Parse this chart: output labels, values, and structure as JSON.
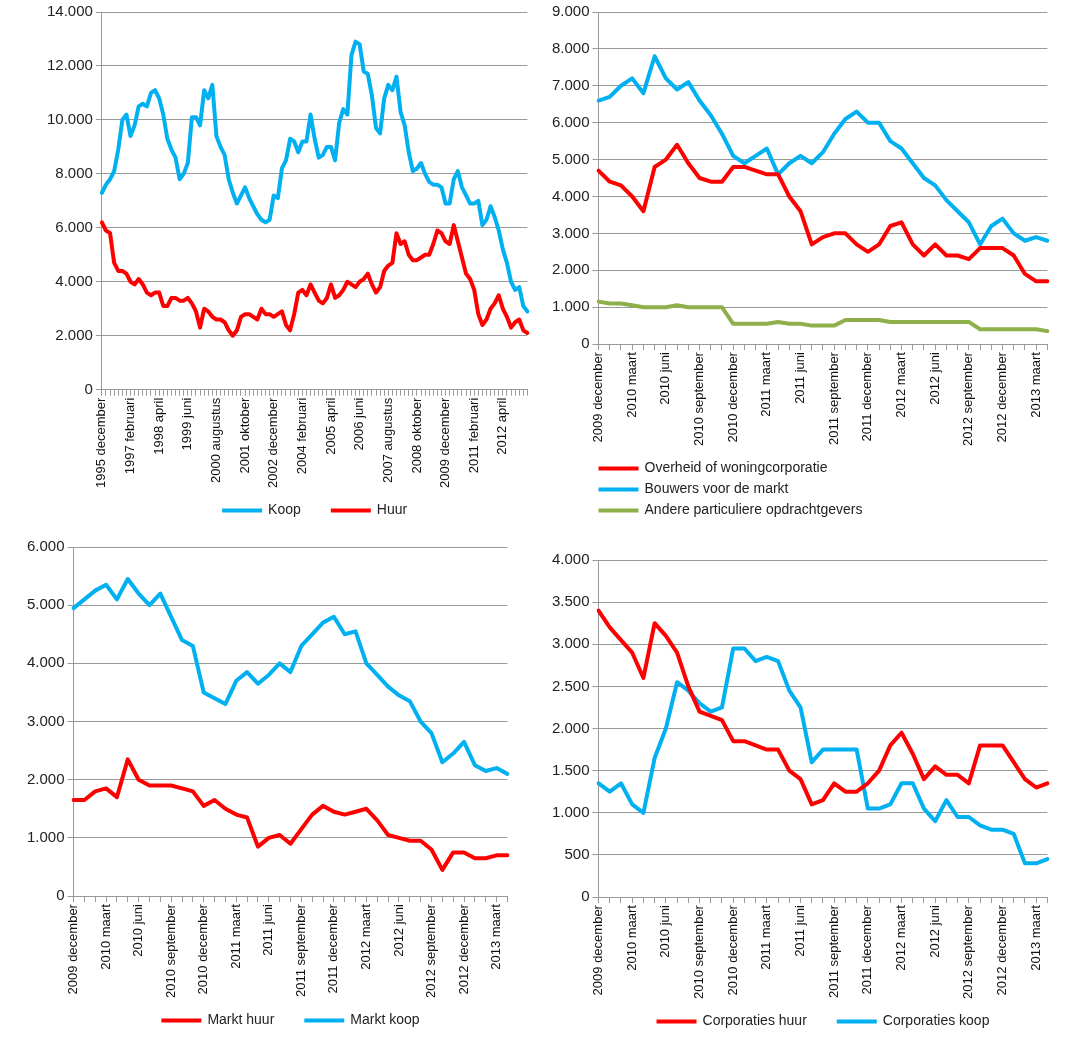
{
  "chart_data": [
    {
      "type": "line",
      "categories": [
        "1995 december",
        null,
        null,
        null,
        null,
        null,
        null,
        "1997 februari",
        null,
        null,
        null,
        null,
        null,
        null,
        "1998 april",
        null,
        null,
        null,
        null,
        null,
        null,
        "1999 juni",
        null,
        null,
        null,
        null,
        null,
        null,
        "2000 augustus",
        null,
        null,
        null,
        null,
        null,
        null,
        "2001 oktober",
        null,
        null,
        null,
        null,
        null,
        null,
        "2002 december",
        null,
        null,
        null,
        null,
        null,
        null,
        "2004 februari",
        null,
        null,
        null,
        null,
        null,
        null,
        "2005 april",
        null,
        null,
        null,
        null,
        null,
        null,
        "2006 juni",
        null,
        null,
        null,
        null,
        null,
        null,
        "2007 augustus",
        null,
        null,
        null,
        null,
        null,
        null,
        "2008 oktober",
        null,
        null,
        null,
        null,
        null,
        null,
        "2009 december",
        null,
        null,
        null,
        null,
        null,
        null,
        "2011 februari",
        null,
        null,
        null,
        null,
        null,
        null,
        "2012 april",
        null,
        null,
        null,
        null,
        null,
        null
      ],
      "series": [
        {
          "name": "Koop",
          "color": "#00b0f0",
          "values": [
            7300,
            7600,
            7800,
            8100,
            8900,
            10000,
            10200,
            9400,
            9800,
            10500,
            10600,
            10500,
            11000,
            11100,
            10800,
            10200,
            9300,
            8900,
            8600,
            7800,
            8000,
            8400,
            10100,
            10100,
            9800,
            11100,
            10800,
            11300,
            9400,
            9000,
            8700,
            7800,
            7300,
            6900,
            7200,
            7500,
            7100,
            6800,
            6500,
            6300,
            6200,
            6300,
            7200,
            7100,
            8200,
            8500,
            9300,
            9200,
            8800,
            9200,
            9200,
            10200,
            9300,
            8600,
            8700,
            9000,
            9000,
            8500,
            9900,
            10400,
            10200,
            12400,
            12900,
            12800,
            11800,
            11700,
            10900,
            9700,
            9500,
            10800,
            11300,
            11100,
            11600,
            10300,
            9800,
            8800,
            8100,
            8200,
            8400,
            8000,
            7700,
            7600,
            7600,
            7500,
            6900,
            6900,
            7800,
            8100,
            7500,
            7200,
            6900,
            6900,
            7000,
            6100,
            6300,
            6800,
            6400,
            5900,
            5200,
            4700,
            4000,
            3700,
            3800,
            3100,
            2900
          ]
        },
        {
          "name": "Huur",
          "color": "#ff0000",
          "values": [
            6200,
            5900,
            5800,
            4700,
            4400,
            4400,
            4300,
            4000,
            3900,
            4100,
            3900,
            3600,
            3500,
            3600,
            3600,
            3100,
            3100,
            3400,
            3400,
            3300,
            3300,
            3400,
            3200,
            2900,
            2300,
            3000,
            2900,
            2700,
            2600,
            2600,
            2500,
            2200,
            2000,
            2200,
            2700,
            2800,
            2800,
            2700,
            2600,
            3000,
            2800,
            2800,
            2700,
            2800,
            2900,
            2400,
            2200,
            2800,
            3600,
            3700,
            3500,
            3900,
            3600,
            3300,
            3200,
            3400,
            3900,
            3400,
            3500,
            3700,
            4000,
            3900,
            3800,
            4000,
            4100,
            4300,
            3900,
            3600,
            3800,
            4400,
            4600,
            4700,
            5800,
            5400,
            5500,
            5000,
            4800,
            4800,
            4900,
            5000,
            5000,
            5400,
            5900,
            5800,
            5500,
            5400,
            6100,
            5500,
            4900,
            4300,
            4100,
            3700,
            2800,
            2400,
            2600,
            3000,
            3200,
            3500,
            3000,
            2700,
            2300,
            2500,
            2600,
            2200,
            2100
          ]
        }
      ],
      "ylim": [
        0,
        14000
      ],
      "yticks": [
        {
          "value": 0,
          "label": "0"
        },
        {
          "value": 2000,
          "label": "2.000"
        },
        {
          "value": 4000,
          "label": "4.000"
        },
        {
          "value": 6000,
          "label": "6.000"
        },
        {
          "value": 8000,
          "label": "8.000"
        },
        {
          "value": 10000,
          "label": "10.000"
        },
        {
          "value": 12000,
          "label": "12.000"
        },
        {
          "value": 14000,
          "label": "14.000"
        }
      ],
      "grid": "y",
      "legend": "bottom",
      "line_style": "solid"
    },
    {
      "type": "line",
      "categories": [
        "2009 december",
        null,
        null,
        "2010 maart",
        null,
        null,
        "2010 juni",
        null,
        null,
        "2010 september",
        null,
        null,
        "2010 december",
        null,
        null,
        "2011 maart",
        null,
        null,
        "2011 juni",
        null,
        null,
        "2011 september",
        null,
        null,
        "2011 december",
        null,
        null,
        "2012 maart",
        null,
        null,
        "2012 juni",
        null,
        null,
        "2012 september",
        null,
        null,
        "2012 december",
        null,
        null,
        "2013 maart",
        null
      ],
      "series": [
        {
          "name": "Overheid of woningcorporatie",
          "color": "#ff0000",
          "values": [
            4700,
            4400,
            4300,
            4000,
            3600,
            4800,
            5000,
            5400,
            4900,
            4500,
            4400,
            4400,
            4800,
            4800,
            4700,
            4600,
            4600,
            4000,
            3600,
            2700,
            2900,
            3000,
            3000,
            2700,
            2500,
            2700,
            3200,
            3300,
            2700,
            2400,
            2700,
            2400,
            2400,
            2300,
            2600,
            2600,
            2600,
            2400,
            1900,
            1700,
            1700
          ]
        },
        {
          "name": "Bouwers voor de markt",
          "color": "#00b0f0",
          "values": [
            6600,
            6700,
            7000,
            7200,
            6800,
            7800,
            7200,
            6900,
            7100,
            6600,
            6200,
            5700,
            5100,
            4900,
            5100,
            5300,
            4600,
            4900,
            5100,
            4900,
            5200,
            5700,
            6100,
            6300,
            6000,
            6000,
            5500,
            5300,
            4900,
            4500,
            4300,
            3900,
            3600,
            3300,
            2700,
            3200,
            3400,
            3000,
            2800,
            2900,
            2800
          ]
        },
        {
          "name": "Andere particuliere opdrachtgevers",
          "color": "#8db04a",
          "values": [
            1150,
            1100,
            1100,
            1050,
            1000,
            1000,
            1000,
            1050,
            1000,
            1000,
            1000,
            1000,
            550,
            550,
            550,
            550,
            600,
            550,
            550,
            500,
            500,
            500,
            650,
            650,
            650,
            650,
            600,
            600,
            600,
            600,
            600,
            600,
            600,
            600,
            400,
            400,
            400,
            400,
            400,
            400,
            350
          ]
        }
      ],
      "ylim": [
        0,
        9000
      ],
      "yticks": [
        {
          "value": 0,
          "label": "0"
        },
        {
          "value": 1000,
          "label": "1.000"
        },
        {
          "value": 2000,
          "label": "2.000"
        },
        {
          "value": 3000,
          "label": "3.000"
        },
        {
          "value": 4000,
          "label": "4.000"
        },
        {
          "value": 5000,
          "label": "5.000"
        },
        {
          "value": 6000,
          "label": "6.000"
        },
        {
          "value": 7000,
          "label": "7.000"
        },
        {
          "value": 8000,
          "label": "8.000"
        },
        {
          "value": 9000,
          "label": "9.000"
        }
      ],
      "grid": "y",
      "legend": "bottom",
      "line_style": "solid"
    },
    {
      "type": "line",
      "categories": [
        "2009 december",
        null,
        null,
        "2010 maart",
        null,
        null,
        "2010 juni",
        null,
        null,
        "2010 september",
        null,
        null,
        "2010 december",
        null,
        null,
        "2011 maart",
        null,
        null,
        "2011 juni",
        null,
        null,
        "2011 september",
        null,
        null,
        "2011 december",
        null,
        null,
        "2012 maart",
        null,
        null,
        "2012 juni",
        null,
        null,
        "2012 september",
        null,
        null,
        "2012 december",
        null,
        null,
        "2013 maart",
        null
      ],
      "series": [
        {
          "name": "Markt huur",
          "color": "#ff0000",
          "values": [
            1650,
            1650,
            1800,
            1850,
            1700,
            2350,
            2000,
            1900,
            1900,
            1900,
            1850,
            1800,
            1550,
            1650,
            1500,
            1400,
            1350,
            850,
            1000,
            1050,
            900,
            1150,
            1400,
            1550,
            1450,
            1400,
            1450,
            1500,
            1300,
            1050,
            1000,
            950,
            950,
            800,
            450,
            750,
            750,
            650,
            650,
            700,
            700
          ]
        },
        {
          "name": "Markt koop",
          "color": "#00b0f0",
          "values": [
            4950,
            5100,
            5250,
            5350,
            5100,
            5450,
            5200,
            5000,
            5200,
            4800,
            4400,
            4300,
            3500,
            3400,
            3300,
            3700,
            3850,
            3650,
            3800,
            4000,
            3850,
            4300,
            4500,
            4700,
            4800,
            4500,
            4550,
            4000,
            3800,
            3600,
            3450,
            3350,
            3000,
            2800,
            2300,
            2450,
            2650,
            2250,
            2150,
            2200,
            2100
          ]
        }
      ],
      "ylim": [
        0,
        6000
      ],
      "yticks": [
        {
          "value": 0,
          "label": "0"
        },
        {
          "value": 1000,
          "label": "1.000"
        },
        {
          "value": 2000,
          "label": "2.000"
        },
        {
          "value": 3000,
          "label": "3.000"
        },
        {
          "value": 4000,
          "label": "4.000"
        },
        {
          "value": 5000,
          "label": "5.000"
        },
        {
          "value": 6000,
          "label": "6.000"
        }
      ],
      "grid": "y",
      "legend": "bottom",
      "line_style": "solid"
    },
    {
      "type": "line",
      "categories": [
        "2009 december",
        null,
        null,
        "2010 maart",
        null,
        null,
        "2010 juni",
        null,
        null,
        "2010 september",
        null,
        null,
        "2010 december",
        null,
        null,
        "2011 maart",
        null,
        null,
        "2011 juni",
        null,
        null,
        "2011 september",
        null,
        null,
        "2011 december",
        null,
        null,
        "2012 maart",
        null,
        null,
        "2012 juni",
        null,
        null,
        "2012 september",
        null,
        null,
        "2012 december",
        null,
        null,
        "2013 maart",
        null
      ],
      "series": [
        {
          "name": "Corporaties huur",
          "color": "#ff0000",
          "values": [
            3400,
            3200,
            3050,
            2900,
            2600,
            3250,
            3100,
            2900,
            2500,
            2200,
            2150,
            2100,
            1850,
            1850,
            1800,
            1750,
            1750,
            1500,
            1400,
            1100,
            1150,
            1350,
            1250,
            1250,
            1350,
            1500,
            1800,
            1950,
            1700,
            1400,
            1550,
            1450,
            1450,
            1350,
            1800,
            1800,
            1800,
            1600,
            1400,
            1300,
            1350
          ]
        },
        {
          "name": "Corporaties koop",
          "color": "#00b0f0",
          "values": [
            1350,
            1250,
            1350,
            1100,
            1000,
            1650,
            2000,
            2550,
            2450,
            2300,
            2200,
            2250,
            2950,
            2950,
            2800,
            2850,
            2800,
            2450,
            2250,
            1600,
            1750,
            1750,
            1750,
            1750,
            1050,
            1050,
            1100,
            1350,
            1350,
            1050,
            900,
            1150,
            950,
            950,
            850,
            800,
            800,
            750,
            400,
            400,
            450
          ]
        }
      ],
      "ylim": [
        0,
        4000
      ],
      "yticks": [
        {
          "value": 0,
          "label": "0"
        },
        {
          "value": 500,
          "label": "500"
        },
        {
          "value": 1000,
          "label": "1.000"
        },
        {
          "value": 1500,
          "label": "1.500"
        },
        {
          "value": 2000,
          "label": "2.000"
        },
        {
          "value": 2500,
          "label": "2.500"
        },
        {
          "value": 3000,
          "label": "3.000"
        },
        {
          "value": 3500,
          "label": "3.500"
        },
        {
          "value": 4000,
          "label": "4.000"
        }
      ],
      "grid": "y",
      "legend": "bottom",
      "line_style": "solid"
    }
  ]
}
